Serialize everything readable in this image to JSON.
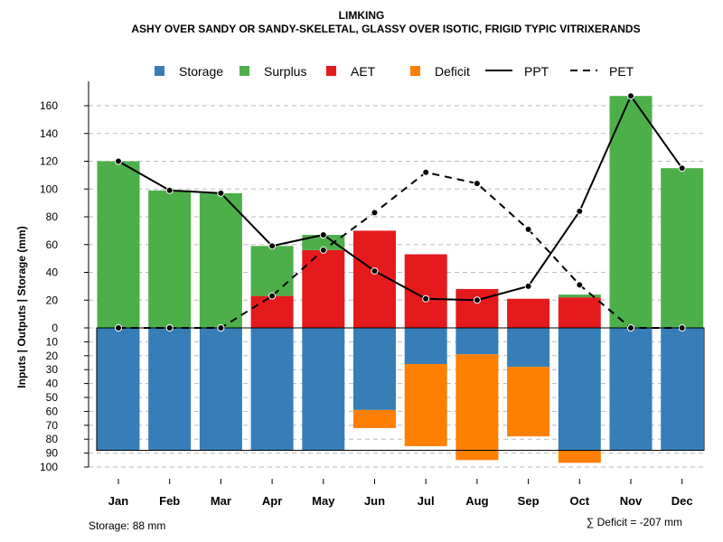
{
  "chart_data": {
    "type": "bar",
    "title": "LIMKING",
    "subtitle": "ASHY OVER SANDY OR SANDY-SKELETAL, GLASSY OVER ISOTIC, FRIGID TYPIC VITRIXERANDS",
    "ylabel": "Inputs | Outputs | Storage    (mm)",
    "ylim_upper": [
      0,
      160
    ],
    "ylim_lower": [
      0,
      100
    ],
    "upper_ticks": [
      "0",
      "20",
      "40",
      "60",
      "80",
      "100",
      "120",
      "140",
      "160"
    ],
    "lower_ticks": [
      "0",
      "10",
      "20",
      "30",
      "40",
      "50",
      "60",
      "70",
      "80",
      "90",
      "100"
    ],
    "categories": [
      "Jan",
      "Feb",
      "Mar",
      "Apr",
      "May",
      "Jun",
      "Jul",
      "Aug",
      "Sep",
      "Oct",
      "Nov",
      "Dec"
    ],
    "legend": [
      "Storage",
      "Surplus",
      "AET",
      "Deficit",
      "PPT",
      "PET"
    ],
    "colors": {
      "Storage": "#377EB8",
      "Surplus": "#4DAF4A",
      "AET": "#E41A1C",
      "Deficit": "#FF7F00"
    },
    "series": [
      {
        "name": "AET",
        "values": [
          0,
          0,
          0,
          23,
          56,
          70,
          53,
          28,
          21,
          22,
          0,
          0
        ]
      },
      {
        "name": "Surplus",
        "values": [
          120,
          99,
          97,
          36,
          11,
          0,
          0,
          0,
          0,
          2,
          167,
          115
        ]
      },
      {
        "name": "Storage",
        "values": [
          88,
          88,
          88,
          88,
          88,
          59,
          26,
          19,
          28,
          88,
          88,
          88
        ]
      },
      {
        "name": "Deficit",
        "values": [
          0,
          0,
          0,
          0,
          0,
          13,
          59,
          76,
          50,
          9,
          0,
          0
        ]
      },
      {
        "name": "PPT",
        "values": [
          120,
          99,
          97,
          59,
          67,
          41,
          21,
          20,
          30,
          84,
          167,
          115
        ]
      },
      {
        "name": "PET",
        "values": [
          0,
          0,
          0,
          23,
          56,
          83,
          112,
          104,
          71,
          31,
          0,
          0
        ]
      }
    ],
    "storage_capacity": 88,
    "footer_left": "Storage: 88 mm",
    "footer_right": "∑ Deficit = -207 mm"
  }
}
